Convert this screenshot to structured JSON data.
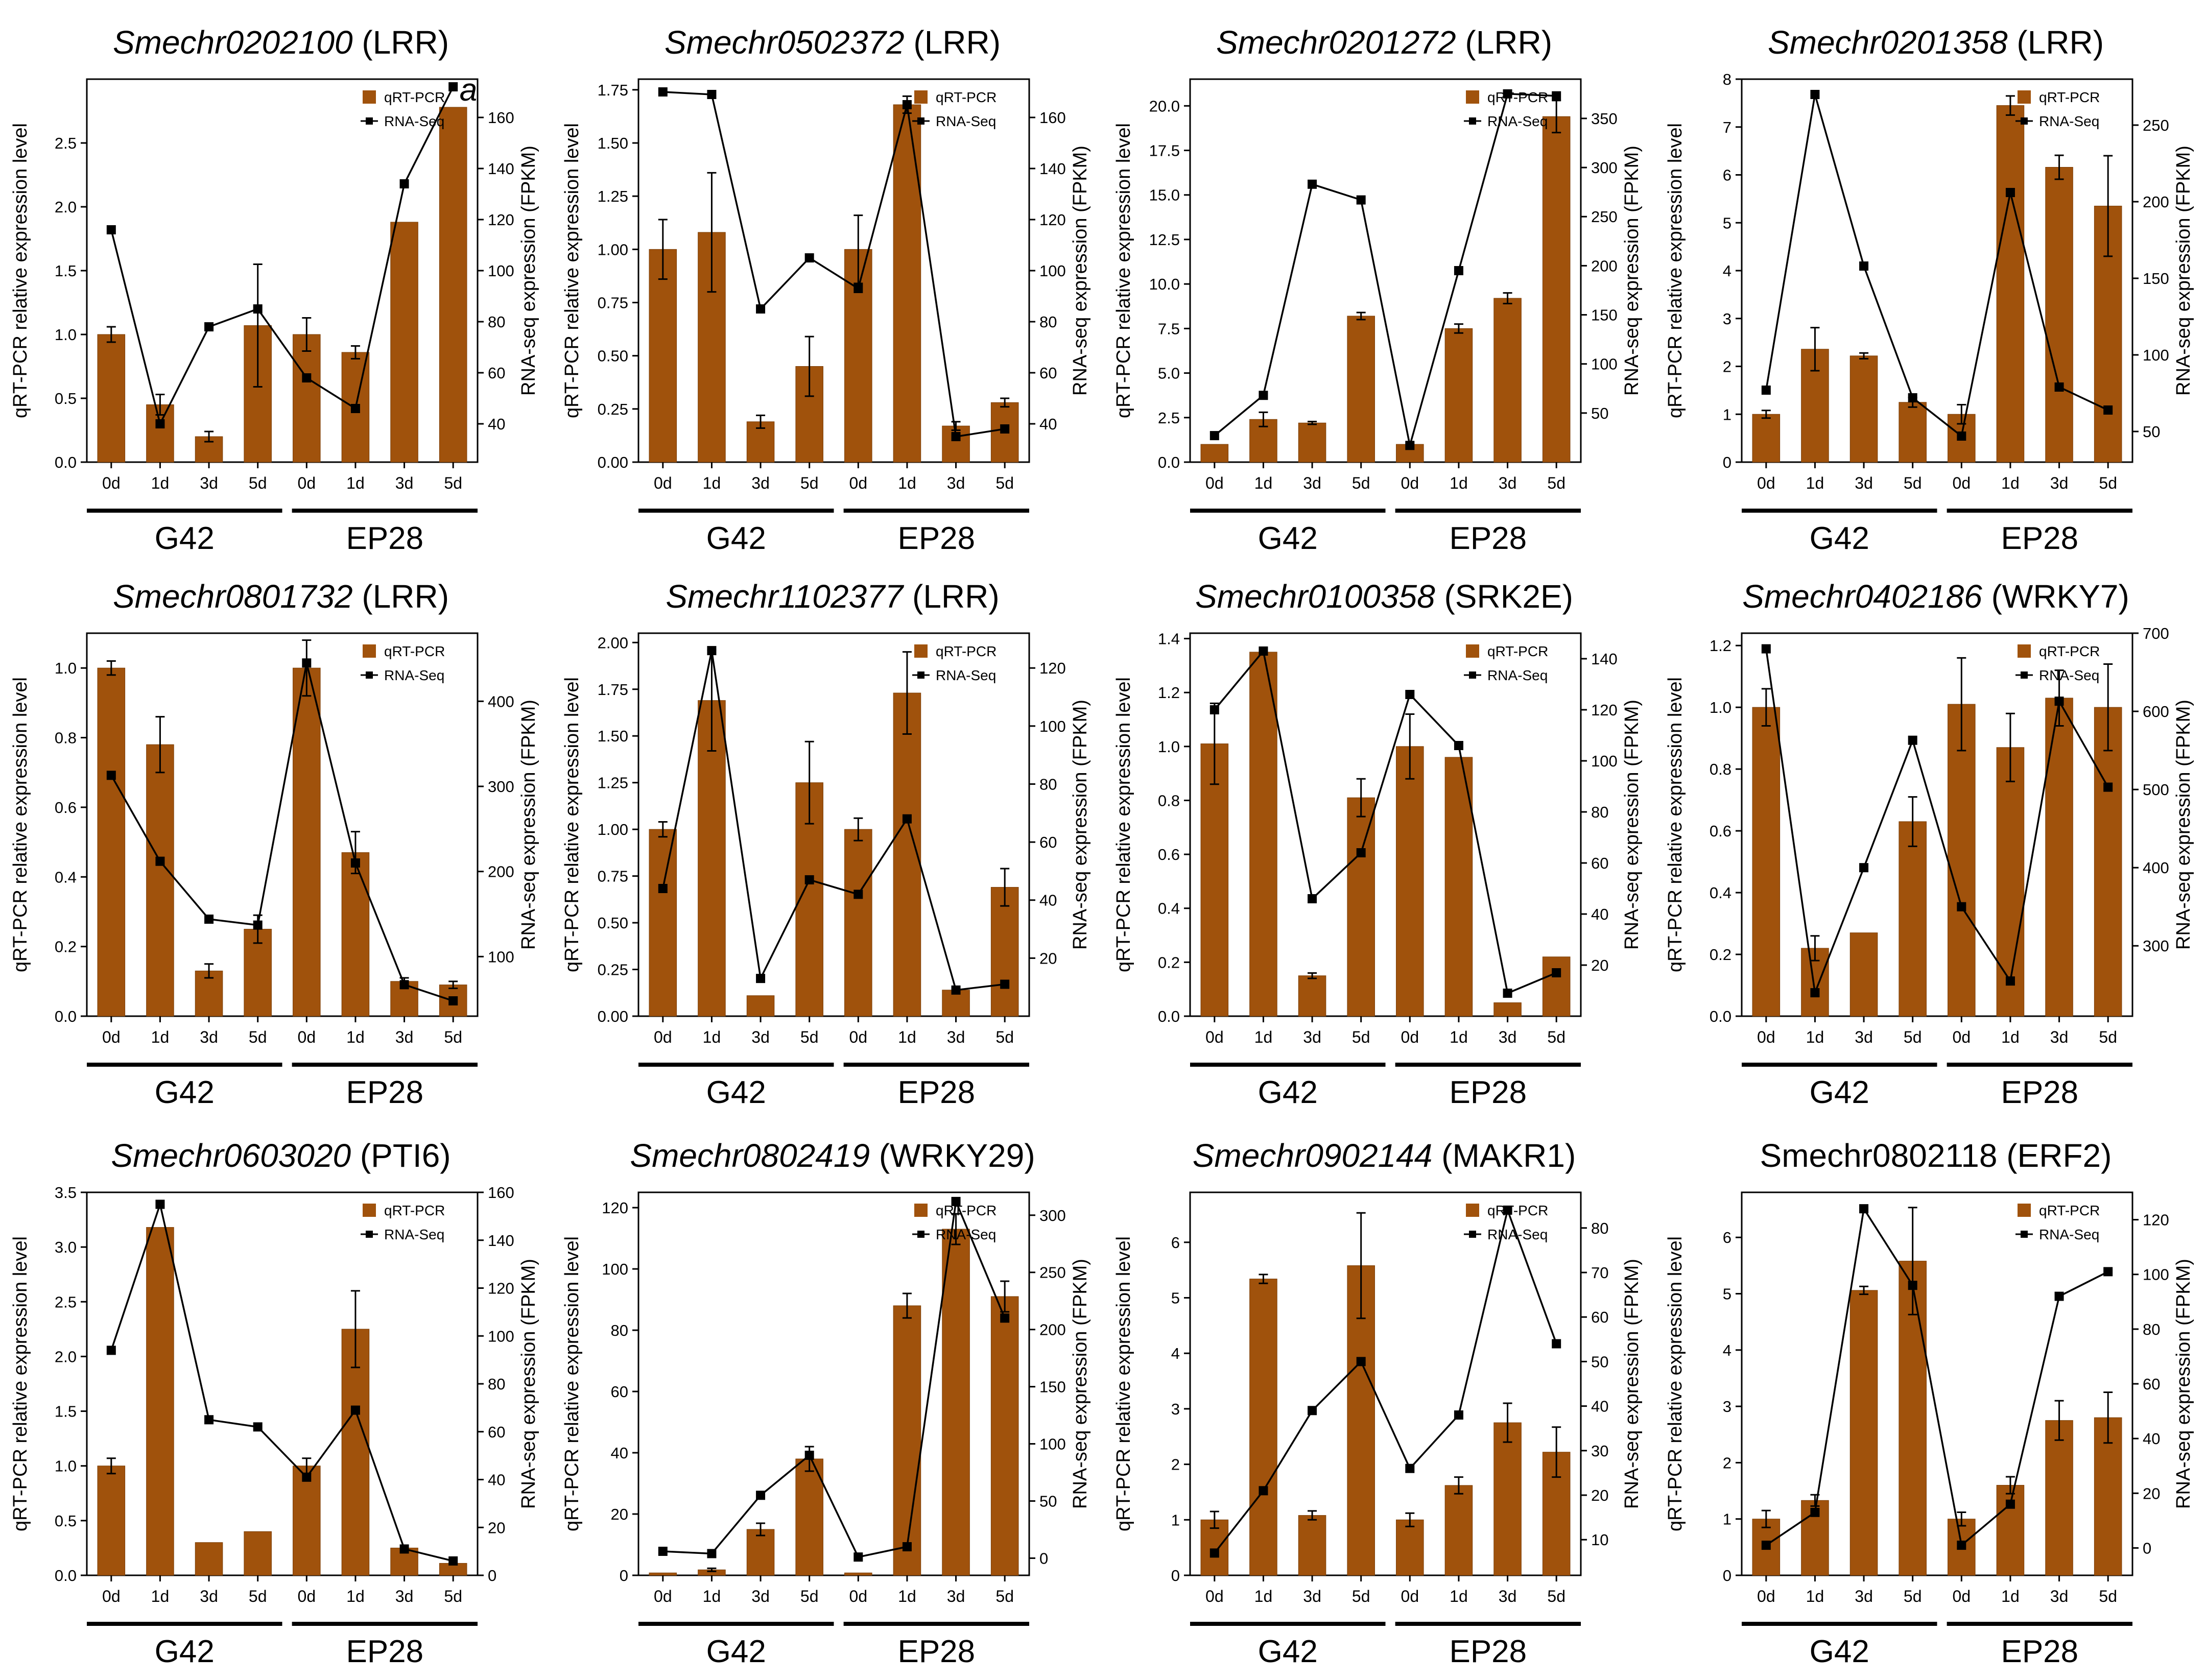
{
  "colors": {
    "bar": "#A0520C",
    "bar_edge": "#7A3D06",
    "line": "#000000",
    "axis": "#000000"
  },
  "legend": {
    "bar_label": "qRT-PCR",
    "line_label": "RNA-Seq"
  },
  "left_axis_label": "qRT-PCR relative expression level",
  "right_axis_label": "RNA-seq expression (FPKM)",
  "group_labels": [
    "G42",
    "EP28"
  ],
  "chart_data": [
    {
      "type": "bar+line",
      "gene": "Smechr0202100",
      "annotation": "(LRR)",
      "gene_italic": true,
      "panel_letter": "a",
      "categories": [
        "0d",
        "1d",
        "3d",
        "5d",
        "0d",
        "1d",
        "3d",
        "5d"
      ],
      "left_ylim": [
        0,
        3.0
      ],
      "left_ticks": [
        "0.0",
        "0.5",
        "1.0",
        "1.5",
        "2.0",
        "2.5"
      ],
      "right_ylim": [
        25,
        175
      ],
      "right_ticks": [
        "40",
        "60",
        "80",
        "100",
        "120",
        "140",
        "160"
      ],
      "qrt_pcr": [
        1.0,
        0.45,
        0.2,
        1.07,
        1.0,
        0.86,
        1.88,
        2.78
      ],
      "qrt_pcr_err": [
        0.06,
        0.08,
        0.04,
        0.48,
        0.13,
        0.05,
        0.0,
        0.0
      ],
      "rna_seq": [
        116,
        40,
        78,
        85,
        58,
        46,
        134,
        172
      ]
    },
    {
      "type": "bar+line",
      "gene": "Smechr0502372",
      "annotation": "(LRR)",
      "gene_italic": true,
      "categories": [
        "0d",
        "1d",
        "3d",
        "5d",
        "0d",
        "1d",
        "3d",
        "5d"
      ],
      "left_ylim": [
        0,
        1.8
      ],
      "left_ticks": [
        "0.00",
        "0.25",
        "0.50",
        "0.75",
        "1.00",
        "1.25",
        "1.50",
        "1.75"
      ],
      "right_ylim": [
        25,
        175
      ],
      "right_ticks": [
        "40",
        "60",
        "80",
        "100",
        "120",
        "140",
        "160"
      ],
      "qrt_pcr": [
        1.0,
        1.08,
        0.19,
        0.45,
        1.0,
        1.68,
        0.17,
        0.28
      ],
      "qrt_pcr_err": [
        0.14,
        0.28,
        0.03,
        0.14,
        0.16,
        0.04,
        0.02,
        0.02
      ],
      "rna_seq": [
        170,
        169,
        85,
        105,
        93,
        165,
        35,
        38
      ]
    },
    {
      "type": "bar+line",
      "gene": "Smechr0201272",
      "annotation": "(LRR)",
      "gene_italic": true,
      "categories": [
        "0d",
        "1d",
        "3d",
        "5d",
        "0d",
        "1d",
        "3d",
        "5d"
      ],
      "left_ylim": [
        0,
        21.5
      ],
      "left_ticks": [
        "0.0",
        "2.5",
        "5.0",
        "7.5",
        "10.0",
        "12.5",
        "15.0",
        "17.5",
        "20.0"
      ],
      "right_ylim": [
        0,
        390
      ],
      "right_ticks": [
        "50",
        "100",
        "150",
        "200",
        "250",
        "300",
        "350"
      ],
      "qrt_pcr": [
        1.0,
        2.4,
        2.2,
        8.2,
        1.0,
        7.5,
        9.2,
        19.4
      ],
      "qrt_pcr_err": [
        0.0,
        0.4,
        0.08,
        0.2,
        0.0,
        0.25,
        0.3,
        0.9
      ],
      "rna_seq": [
        27,
        68,
        283,
        267,
        17,
        195,
        375,
        373
      ]
    },
    {
      "type": "bar+line",
      "gene": "Smechr0201358",
      "annotation": "(LRR)",
      "gene_italic": true,
      "categories": [
        "0d",
        "1d",
        "3d",
        "5d",
        "0d",
        "1d",
        "3d",
        "5d"
      ],
      "left_ylim": [
        0,
        8
      ],
      "left_ticks": [
        "0",
        "1",
        "2",
        "3",
        "4",
        "5",
        "6",
        "7",
        "8"
      ],
      "right_ylim": [
        30,
        280
      ],
      "right_ticks": [
        "50",
        "100",
        "150",
        "200",
        "250"
      ],
      "qrt_pcr": [
        1.0,
        2.36,
        2.22,
        1.25,
        1.0,
        7.45,
        6.16,
        5.35
      ],
      "qrt_pcr_err": [
        0.08,
        0.45,
        0.06,
        0.1,
        0.2,
        0.2,
        0.25,
        1.05
      ],
      "rna_seq": [
        77,
        270,
        158,
        72,
        47,
        206,
        79,
        64
      ]
    },
    {
      "type": "bar+line",
      "gene": "Smechr0801732",
      "annotation": "(LRR)",
      "gene_italic": true,
      "categories": [
        "0d",
        "1d",
        "3d",
        "5d",
        "0d",
        "1d",
        "3d",
        "5d"
      ],
      "left_ylim": [
        0,
        1.1
      ],
      "left_ticks": [
        "0.0",
        "0.2",
        "0.4",
        "0.6",
        "0.8",
        "1.0"
      ],
      "right_ylim": [
        30,
        480
      ],
      "right_ticks": [
        "100",
        "200",
        "300",
        "400"
      ],
      "qrt_pcr": [
        1.0,
        0.78,
        0.13,
        0.25,
        1.0,
        0.47,
        0.1,
        0.09
      ],
      "qrt_pcr_err": [
        0.02,
        0.08,
        0.02,
        0.04,
        0.08,
        0.06,
        0.01,
        0.01
      ],
      "rna_seq": [
        313,
        212,
        144,
        137,
        445,
        210,
        67,
        48
      ]
    },
    {
      "type": "bar+line",
      "gene": "Smechr1102377",
      "annotation": "(LRR)",
      "gene_italic": true,
      "categories": [
        "0d",
        "1d",
        "3d",
        "5d",
        "0d",
        "1d",
        "3d",
        "5d"
      ],
      "left_ylim": [
        0,
        2.05
      ],
      "left_ticks": [
        "0.00",
        "0.25",
        "0.50",
        "0.75",
        "1.00",
        "1.25",
        "1.50",
        "1.75",
        "2.00"
      ],
      "right_ylim": [
        0,
        132
      ],
      "right_ticks": [
        "20",
        "40",
        "60",
        "80",
        "100",
        "120"
      ],
      "qrt_pcr": [
        1.0,
        1.69,
        0.11,
        1.25,
        1.0,
        1.73,
        0.14,
        0.69
      ],
      "qrt_pcr_err": [
        0.04,
        0.27,
        0.0,
        0.22,
        0.06,
        0.22,
        0.0,
        0.1
      ],
      "rna_seq": [
        44,
        126,
        13,
        47,
        42,
        68,
        9,
        11
      ]
    },
    {
      "type": "bar+line",
      "gene": "Smechr0100358",
      "annotation": "(SRK2E)",
      "gene_italic": true,
      "categories": [
        "0d",
        "1d",
        "3d",
        "5d",
        "0d",
        "1d",
        "3d",
        "5d"
      ],
      "left_ylim": [
        0,
        1.42
      ],
      "left_ticks": [
        "0.0",
        "0.2",
        "0.4",
        "0.6",
        "0.8",
        "1.0",
        "1.2",
        "1.4"
      ],
      "right_ylim": [
        0,
        150
      ],
      "right_ticks": [
        "20",
        "40",
        "60",
        "80",
        "100",
        "120",
        "140"
      ],
      "qrt_pcr": [
        1.01,
        1.35,
        0.15,
        0.81,
        1.0,
        0.96,
        0.05,
        0.22
      ],
      "qrt_pcr_err": [
        0.15,
        0.0,
        0.01,
        0.07,
        0.12,
        0.0,
        0.0,
        0.0
      ],
      "rna_seq": [
        120,
        143,
        46,
        64,
        126,
        106,
        9,
        17
      ]
    },
    {
      "type": "bar+line",
      "gene": "Smechr0402186",
      "annotation": "(WRKY7)",
      "gene_italic": true,
      "categories": [
        "0d",
        "1d",
        "3d",
        "5d",
        "0d",
        "1d",
        "3d",
        "5d"
      ],
      "left_ylim": [
        0,
        1.24
      ],
      "left_ticks": [
        "0.0",
        "0.2",
        "0.4",
        "0.6",
        "0.8",
        "1.0",
        "1.2"
      ],
      "right_ylim": [
        210,
        700
      ],
      "right_ticks": [
        "300",
        "400",
        "500",
        "600",
        "700"
      ],
      "qrt_pcr": [
        1.0,
        0.22,
        0.27,
        0.63,
        1.01,
        0.87,
        1.03,
        1.0
      ],
      "qrt_pcr_err": [
        0.06,
        0.04,
        0.0,
        0.08,
        0.15,
        0.11,
        0.09,
        0.14
      ],
      "rna_seq": [
        680,
        240,
        400,
        563,
        350,
        255,
        613,
        503
      ]
    },
    {
      "type": "bar+line",
      "gene": "Smechr0603020",
      "annotation": "(PTI6)",
      "gene_italic": true,
      "categories": [
        "0d",
        "1d",
        "3d",
        "5d",
        "0d",
        "1d",
        "3d",
        "5d"
      ],
      "left_ylim": [
        0,
        3.5
      ],
      "left_ticks": [
        "0.0",
        "0.5",
        "1.0",
        "1.5",
        "2.0",
        "2.5",
        "3.0",
        "3.5"
      ],
      "right_ylim": [
        0,
        160
      ],
      "right_ticks": [
        "0",
        "20",
        "40",
        "60",
        "80",
        "100",
        "120",
        "140",
        "160"
      ],
      "qrt_pcr": [
        1.0,
        3.18,
        0.3,
        0.4,
        1.0,
        2.25,
        0.25,
        0.11
      ],
      "qrt_pcr_err": [
        0.07,
        0.0,
        0.0,
        0.0,
        0.07,
        0.35,
        0.0,
        0.0
      ],
      "rna_seq": [
        94,
        155,
        65,
        62,
        41,
        69,
        11,
        6
      ]
    },
    {
      "type": "bar+line",
      "gene": "Smechr0802419",
      "annotation": "(WRKY29)",
      "gene_italic": true,
      "categories": [
        "0d",
        "1d",
        "3d",
        "5d",
        "0d",
        "1d",
        "3d",
        "5d"
      ],
      "left_ylim": [
        0,
        125
      ],
      "left_ticks": [
        "0",
        "20",
        "40",
        "60",
        "80",
        "100",
        "120"
      ],
      "right_ylim": [
        -15,
        320
      ],
      "right_ticks": [
        "0",
        "50",
        "100",
        "150",
        "200",
        "250",
        "300"
      ],
      "qrt_pcr": [
        0.8,
        1.8,
        15,
        38,
        0.8,
        88,
        113,
        91
      ],
      "qrt_pcr_err": [
        0.0,
        0.5,
        2.0,
        4.0,
        0.0,
        4.0,
        5.0,
        5.0
      ],
      "rna_seq": [
        6,
        4,
        55,
        90,
        1,
        10,
        312,
        210
      ]
    },
    {
      "type": "bar+line",
      "gene": "Smechr0902144",
      "annotation": "(MAKR1)",
      "gene_italic": true,
      "categories": [
        "0d",
        "1d",
        "3d",
        "5d",
        "0d",
        "1d",
        "3d",
        "5d"
      ],
      "left_ylim": [
        0,
        6.9
      ],
      "left_ticks": [
        "0",
        "1",
        "2",
        "3",
        "4",
        "5",
        "6"
      ],
      "right_ylim": [
        2,
        88
      ],
      "right_ticks": [
        "10",
        "20",
        "30",
        "40",
        "50",
        "60",
        "70",
        "80"
      ],
      "qrt_pcr": [
        1.0,
        5.34,
        1.08,
        5.58,
        1.0,
        1.62,
        2.75,
        2.22
      ],
      "qrt_pcr_err": [
        0.15,
        0.08,
        0.08,
        0.95,
        0.12,
        0.15,
        0.35,
        0.45
      ],
      "rna_seq": [
        7,
        21,
        39,
        50,
        26,
        38,
        84,
        54
      ]
    },
    {
      "type": "bar+line",
      "gene": "Smechr0802118",
      "annotation": "(ERF2)",
      "gene_italic": false,
      "categories": [
        "0d",
        "1d",
        "3d",
        "5d",
        "0d",
        "1d",
        "3d",
        "5d"
      ],
      "left_ylim": [
        0,
        6.8
      ],
      "left_ticks": [
        "0",
        "1",
        "2",
        "3",
        "4",
        "5",
        "6"
      ],
      "right_ylim": [
        -10,
        130
      ],
      "right_ticks": [
        "0",
        "20",
        "40",
        "60",
        "80",
        "100",
        "120"
      ],
      "qrt_pcr": [
        1.0,
        1.33,
        5.06,
        5.58,
        1.0,
        1.6,
        2.75,
        2.8
      ],
      "qrt_pcr_err": [
        0.15,
        0.1,
        0.07,
        0.95,
        0.12,
        0.15,
        0.35,
        0.45
      ],
      "rna_seq": [
        1,
        13,
        124,
        96,
        1,
        16,
        92,
        101
      ]
    }
  ]
}
